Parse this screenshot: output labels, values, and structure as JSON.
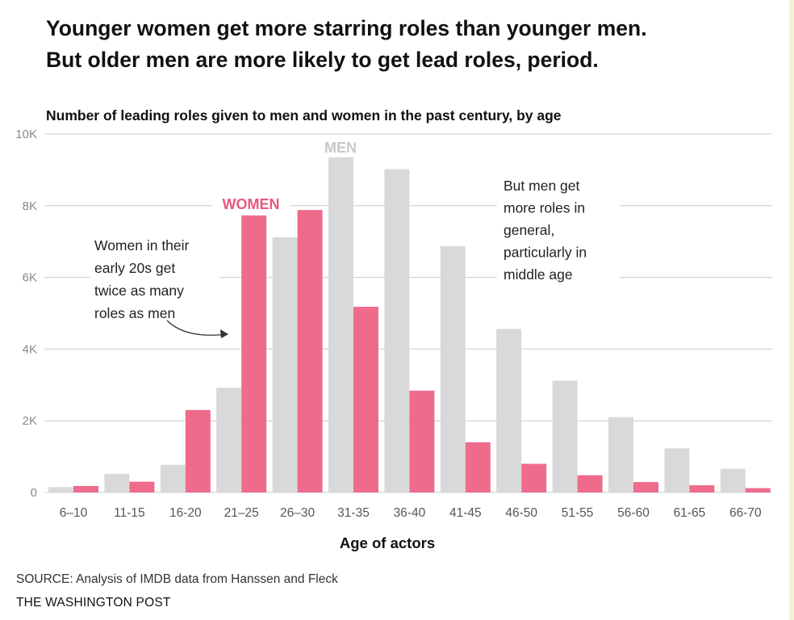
{
  "headline": {
    "line1": "Younger women get more starring roles than younger men.",
    "line2": "But older men are more likely to get lead roles, period."
  },
  "source": "SOURCE: Analysis of IMDB data from Hanssen and Fleck",
  "credit": "THE WASHINGTON POST",
  "colors": {
    "men": "#d9d9d9",
    "women": "#ef6b8c",
    "grid": "#cccccc",
    "women_label": "#e8587d",
    "men_label": "#c8c8c8"
  },
  "chart_data": {
    "type": "bar",
    "title": "Number of leading roles given to men and women in the past century, by age",
    "xlabel": "Age of actors",
    "ylabel": "",
    "ylim": [
      0,
      10000
    ],
    "yticks": [
      {
        "value": 0,
        "label": "0"
      },
      {
        "value": 2000,
        "label": "2K"
      },
      {
        "value": 4000,
        "label": "4K"
      },
      {
        "value": 6000,
        "label": "6K"
      },
      {
        "value": 8000,
        "label": "8K"
      },
      {
        "value": 10000,
        "label": "10K"
      }
    ],
    "grid": true,
    "categories": [
      "6–10",
      "11-15",
      "16-20",
      "21–25",
      "26–30",
      "31-35",
      "36-40",
      "41-45",
      "46-50",
      "51-55",
      "56-60",
      "61-65",
      "66-70"
    ],
    "series": [
      {
        "name": "MEN",
        "values": [
          150,
          520,
          770,
          2920,
          7120,
          9350,
          9020,
          6870,
          4560,
          3120,
          2100,
          1230,
          660
        ]
      },
      {
        "name": "WOMEN",
        "values": [
          180,
          300,
          2300,
          7730,
          7880,
          5180,
          2840,
          1400,
          800,
          480,
          290,
          200,
          120
        ]
      }
    ],
    "annotations": {
      "women_note": [
        "Women in their",
        "early 20s get",
        "twice as many",
        "roles as men"
      ],
      "men_note": [
        "But men get",
        "more roles in",
        "general,",
        "particularly in",
        "middle age"
      ]
    }
  }
}
